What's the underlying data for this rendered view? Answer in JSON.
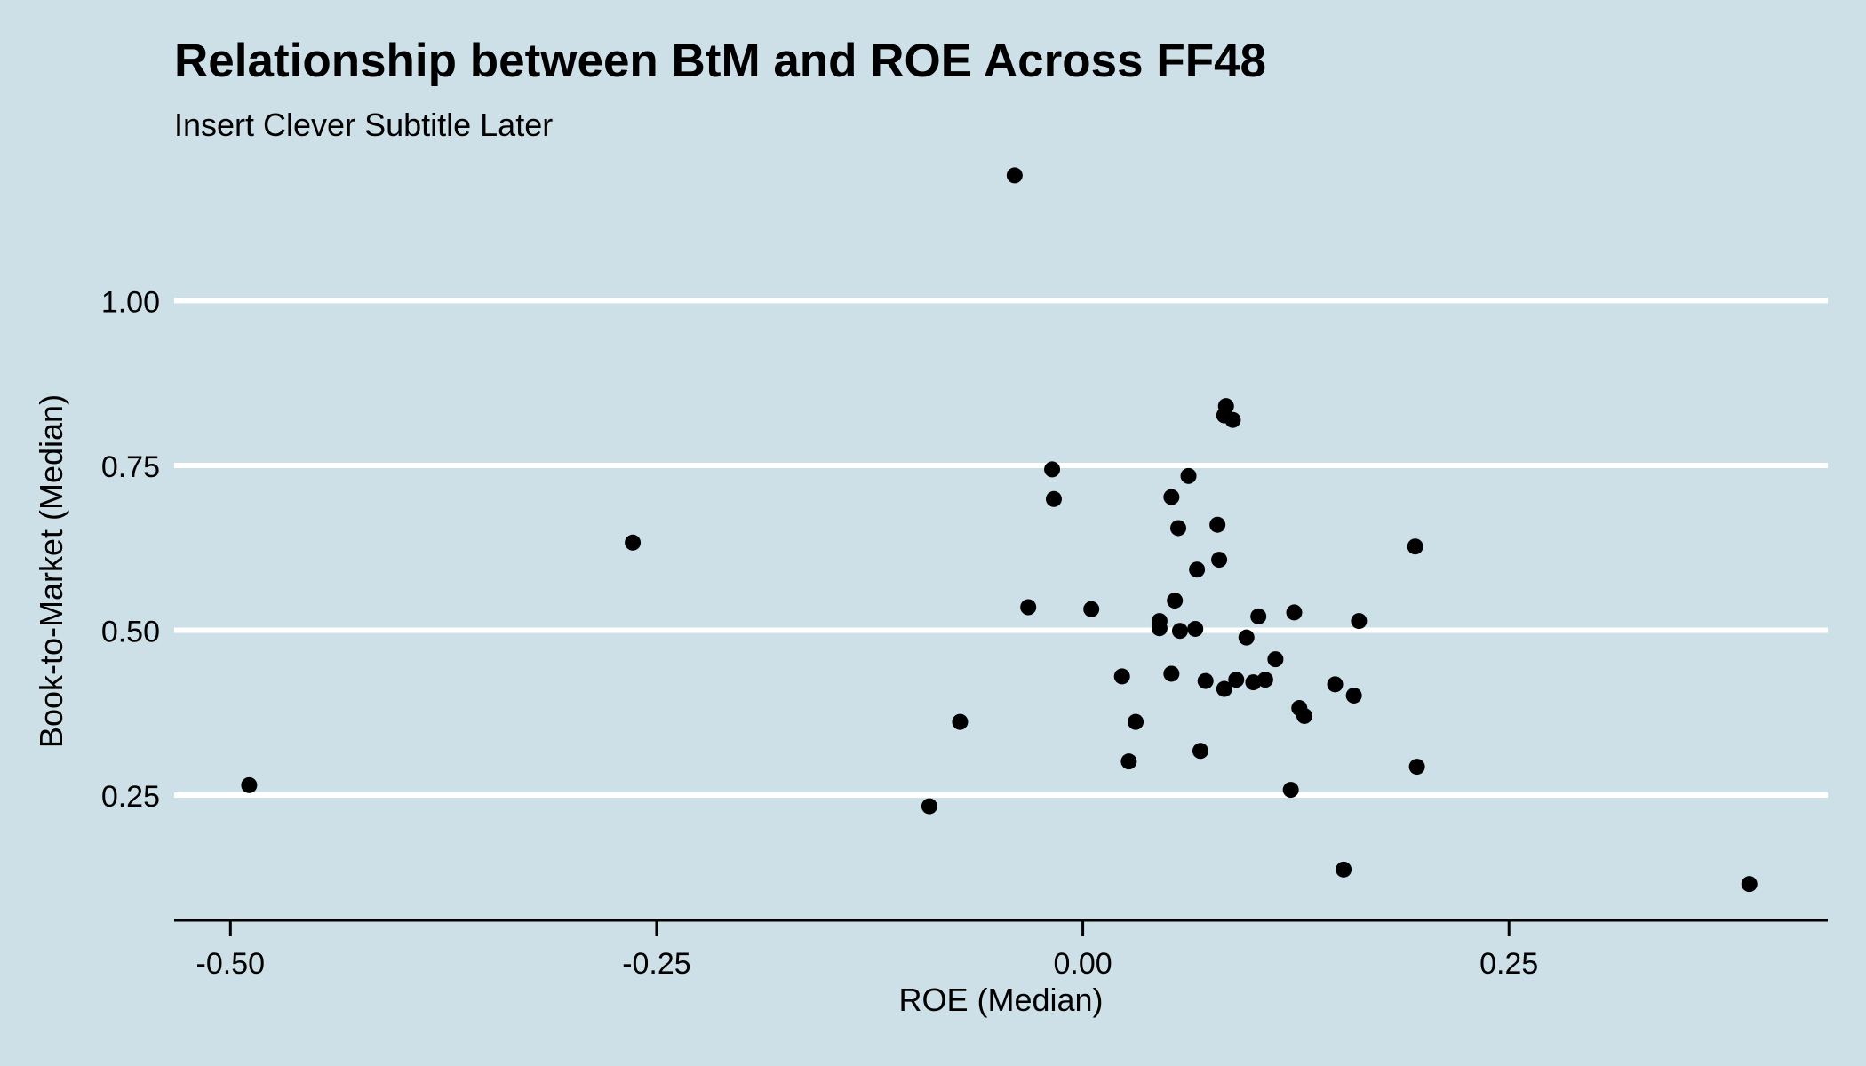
{
  "chart_data": {
    "type": "scatter",
    "title": "Relationship between BtM and ROE Across FF48",
    "subtitle": "Insert Clever Subtitle Later",
    "xlabel": "ROE (Median)",
    "ylabel": "Book-to-Market (Median)",
    "xlim": [
      -0.533,
      0.437
    ],
    "ylim": [
      0.06,
      1.2
    ],
    "x_ticks": [
      -0.5,
      -0.25,
      0.0,
      0.25
    ],
    "x_tick_labels": [
      "-0.50",
      "-0.25",
      "0.00",
      "0.25"
    ],
    "y_ticks": [
      0.25,
      0.5,
      0.75,
      1.0
    ],
    "y_tick_labels": [
      "0.25",
      "0.50",
      "0.75",
      "1.00"
    ],
    "grid": "horizontal",
    "point_color": "#000000",
    "background_color": "#cde0e7",
    "points": [
      {
        "x": -0.489,
        "y": 0.265
      },
      {
        "x": -0.264,
        "y": 0.633
      },
      {
        "x": -0.09,
        "y": 0.233
      },
      {
        "x": -0.072,
        "y": 0.361
      },
      {
        "x": -0.04,
        "y": 1.19
      },
      {
        "x": -0.032,
        "y": 0.535
      },
      {
        "x": -0.018,
        "y": 0.744
      },
      {
        "x": -0.017,
        "y": 0.699
      },
      {
        "x": 0.005,
        "y": 0.532
      },
      {
        "x": 0.023,
        "y": 0.43
      },
      {
        "x": 0.027,
        "y": 0.301
      },
      {
        "x": 0.031,
        "y": 0.361
      },
      {
        "x": 0.045,
        "y": 0.514
      },
      {
        "x": 0.045,
        "y": 0.503
      },
      {
        "x": 0.052,
        "y": 0.702
      },
      {
        "x": 0.052,
        "y": 0.434
      },
      {
        "x": 0.054,
        "y": 0.545
      },
      {
        "x": 0.056,
        "y": 0.655
      },
      {
        "x": 0.057,
        "y": 0.499
      },
      {
        "x": 0.062,
        "y": 0.734
      },
      {
        "x": 0.066,
        "y": 0.502
      },
      {
        "x": 0.067,
        "y": 0.592
      },
      {
        "x": 0.069,
        "y": 0.317
      },
      {
        "x": 0.072,
        "y": 0.423
      },
      {
        "x": 0.079,
        "y": 0.66
      },
      {
        "x": 0.08,
        "y": 0.607
      },
      {
        "x": 0.083,
        "y": 0.411
      },
      {
        "x": 0.083,
        "y": 0.826
      },
      {
        "x": 0.084,
        "y": 0.84
      },
      {
        "x": 0.088,
        "y": 0.819
      },
      {
        "x": 0.09,
        "y": 0.425
      },
      {
        "x": 0.096,
        "y": 0.489
      },
      {
        "x": 0.1,
        "y": 0.421
      },
      {
        "x": 0.103,
        "y": 0.521
      },
      {
        "x": 0.107,
        "y": 0.425
      },
      {
        "x": 0.113,
        "y": 0.456
      },
      {
        "x": 0.122,
        "y": 0.258
      },
      {
        "x": 0.124,
        "y": 0.527
      },
      {
        "x": 0.127,
        "y": 0.382
      },
      {
        "x": 0.13,
        "y": 0.37
      },
      {
        "x": 0.148,
        "y": 0.418
      },
      {
        "x": 0.153,
        "y": 0.137
      },
      {
        "x": 0.159,
        "y": 0.401
      },
      {
        "x": 0.162,
        "y": 0.514
      },
      {
        "x": 0.195,
        "y": 0.627
      },
      {
        "x": 0.196,
        "y": 0.293
      },
      {
        "x": 0.391,
        "y": 0.115
      }
    ]
  }
}
